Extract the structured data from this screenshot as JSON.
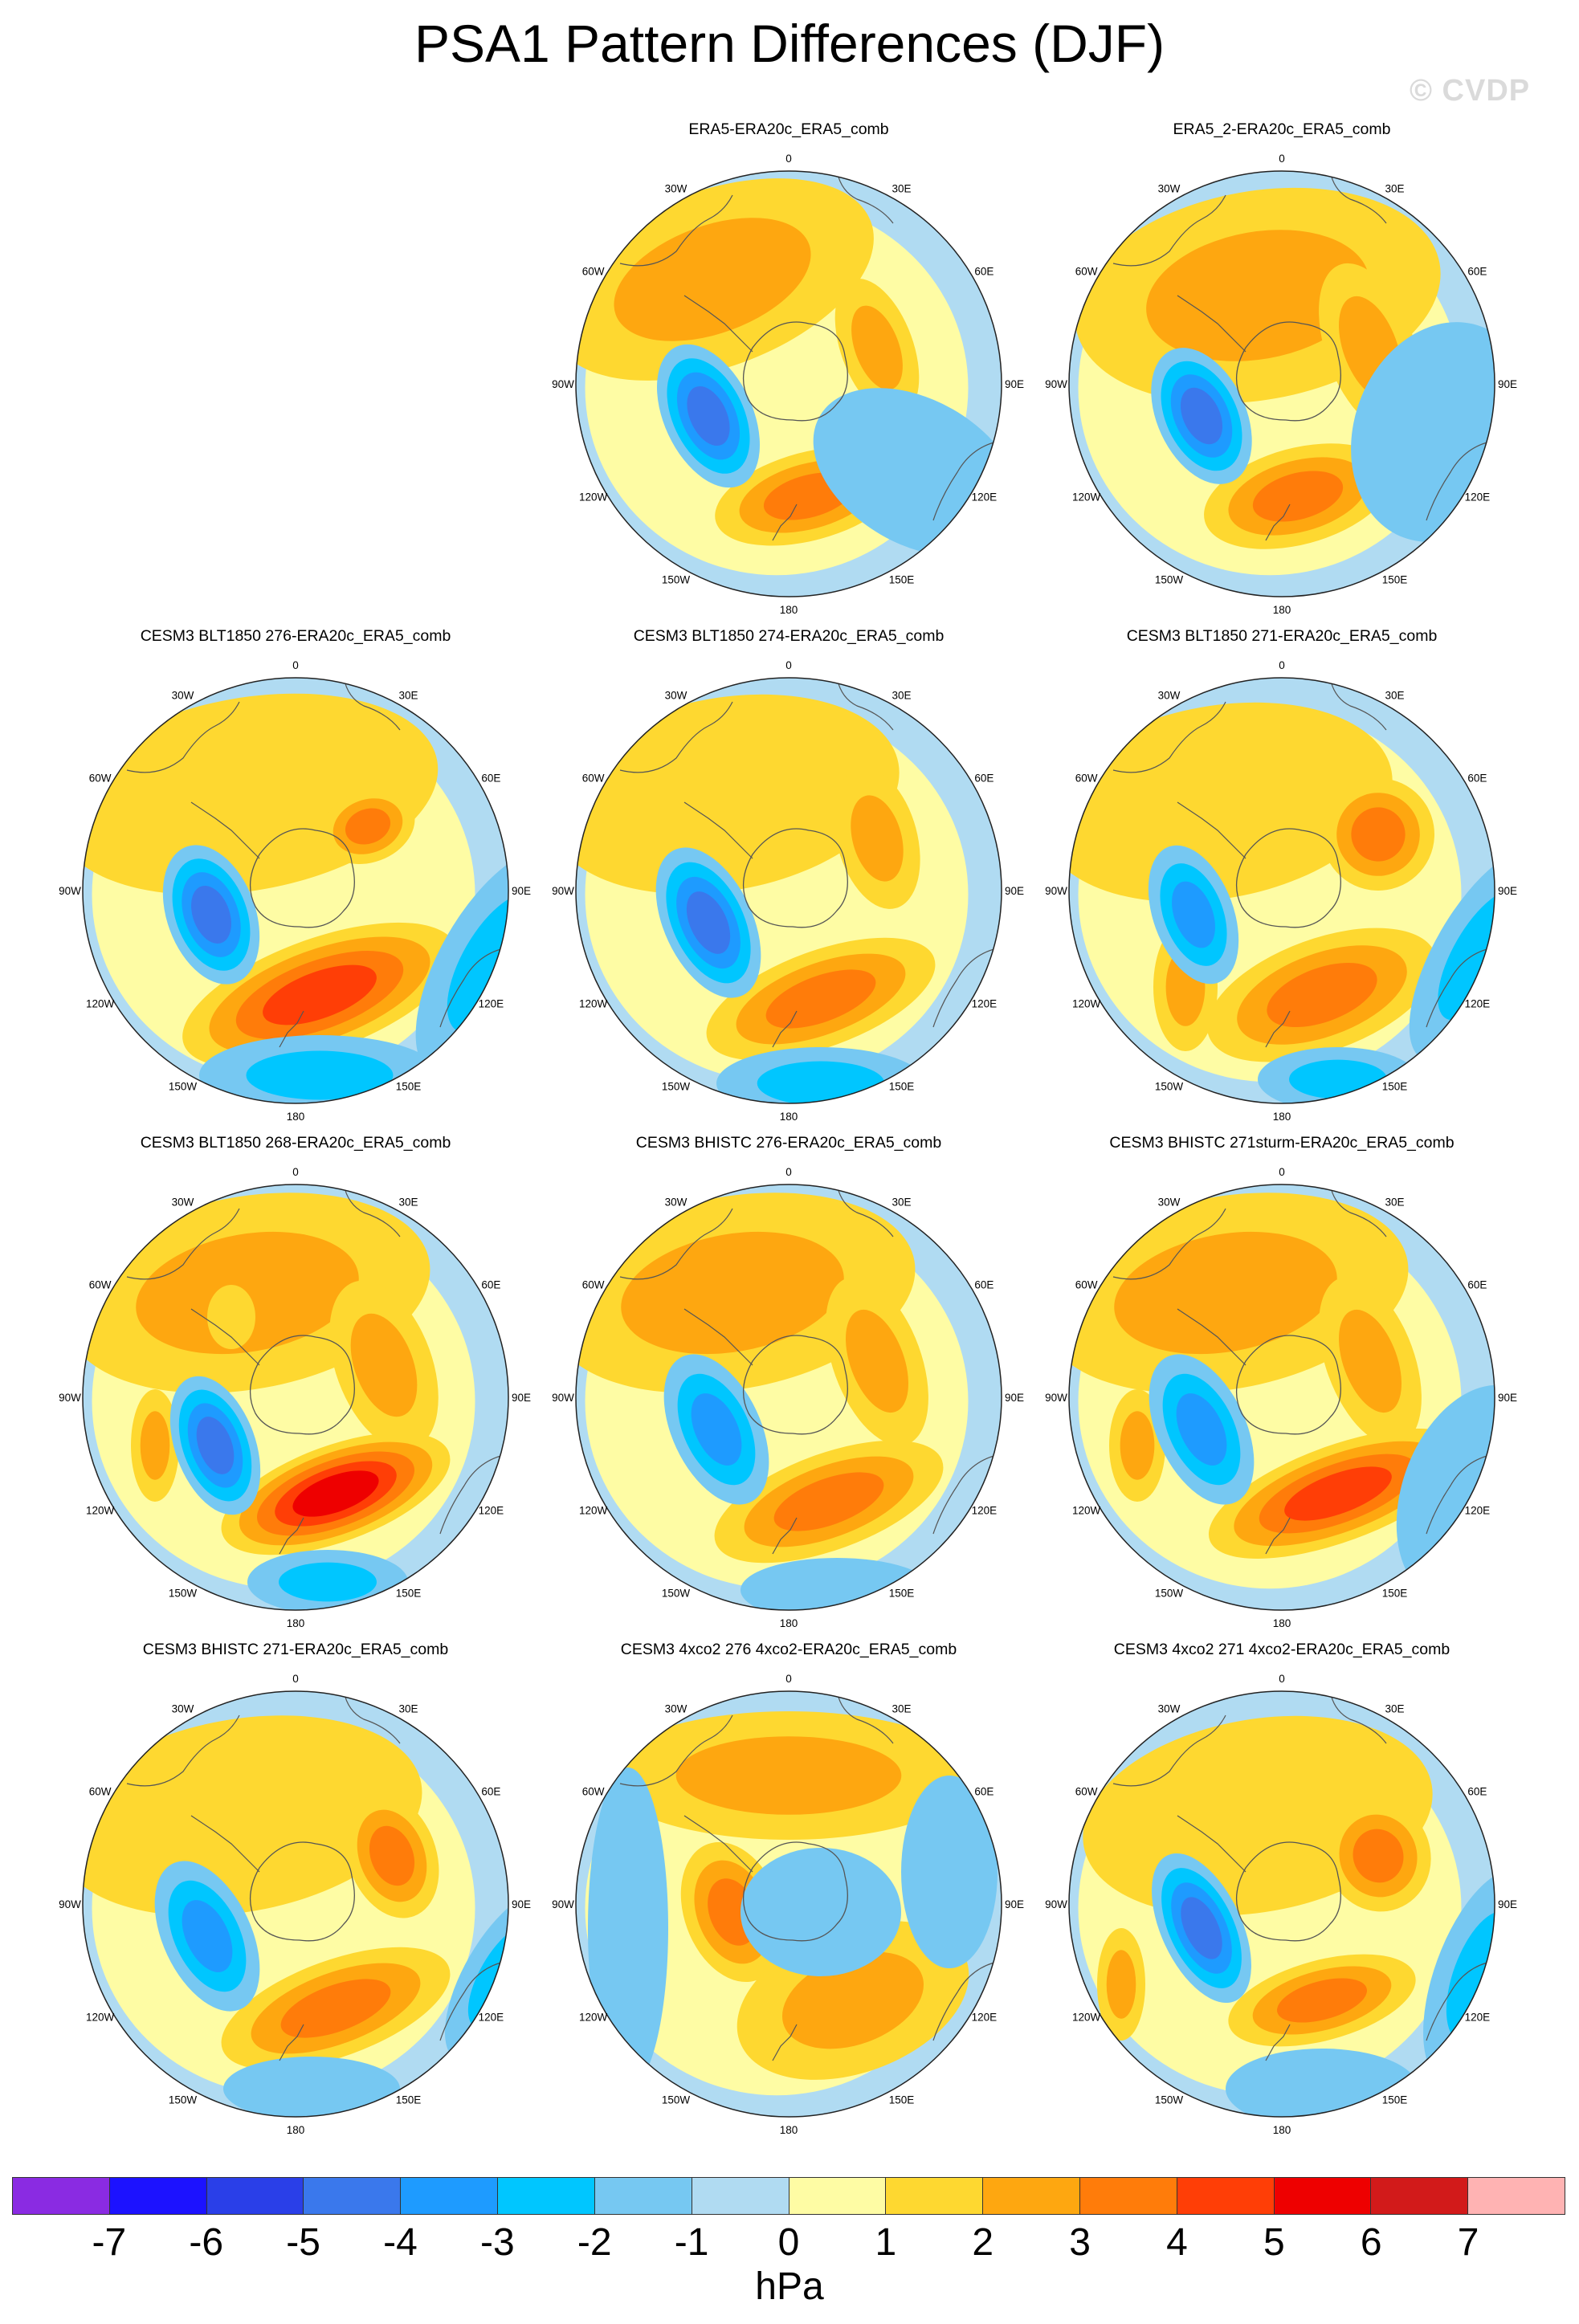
{
  "title": "PSA1 Pattern Differences (DJF)",
  "watermark": "© CVDP",
  "lon_labels": [
    "0",
    "30E",
    "60E",
    "90E",
    "120E",
    "150E",
    "180",
    "150W",
    "120W",
    "90W",
    "60W",
    "30W"
  ],
  "panels": [
    {
      "title": "ERA5-ERA20c_ERA5_comb"
    },
    {
      "title": "ERA5_2-ERA20c_ERA5_comb"
    },
    {
      "title": "CESM3 BLT1850 276-ERA20c_ERA5_comb"
    },
    {
      "title": "CESM3 BLT1850 274-ERA20c_ERA5_comb"
    },
    {
      "title": "CESM3 BLT1850 271-ERA20c_ERA5_comb"
    },
    {
      "title": "CESM3 BLT1850 268-ERA20c_ERA5_comb"
    },
    {
      "title": "CESM3 BHISTC 276-ERA20c_ERA5_comb"
    },
    {
      "title": "CESM3 BHISTC 271sturm-ERA20c_ERA5_comb"
    },
    {
      "title": "CESM3 BHISTC 271-ERA20c_ERA5_comb"
    },
    {
      "title": "CESM3 4xco2 276 4xco2-ERA20c_ERA5_comb"
    },
    {
      "title": "CESM3 4xco2 271 4xco2-ERA20c_ERA5_comb"
    }
  ],
  "colorbar": {
    "colors": [
      "#8a2be2",
      "#1c12ff",
      "#2a3fe8",
      "#3a78ec",
      "#1e9bff",
      "#00c6ff",
      "#76c8f2",
      "#b0dbf2",
      "#fefca4",
      "#fed830",
      "#fea710",
      "#ff7c0a",
      "#ff3e06",
      "#ee0000",
      "#d21a1a",
      "#ffb3b3"
    ],
    "labels": [
      "-7",
      "-6",
      "-5",
      "-4",
      "-3",
      "-2",
      "-1",
      "0",
      "1",
      "2",
      "3",
      "4",
      "5",
      "6",
      "7"
    ],
    "units": "hPa"
  }
}
